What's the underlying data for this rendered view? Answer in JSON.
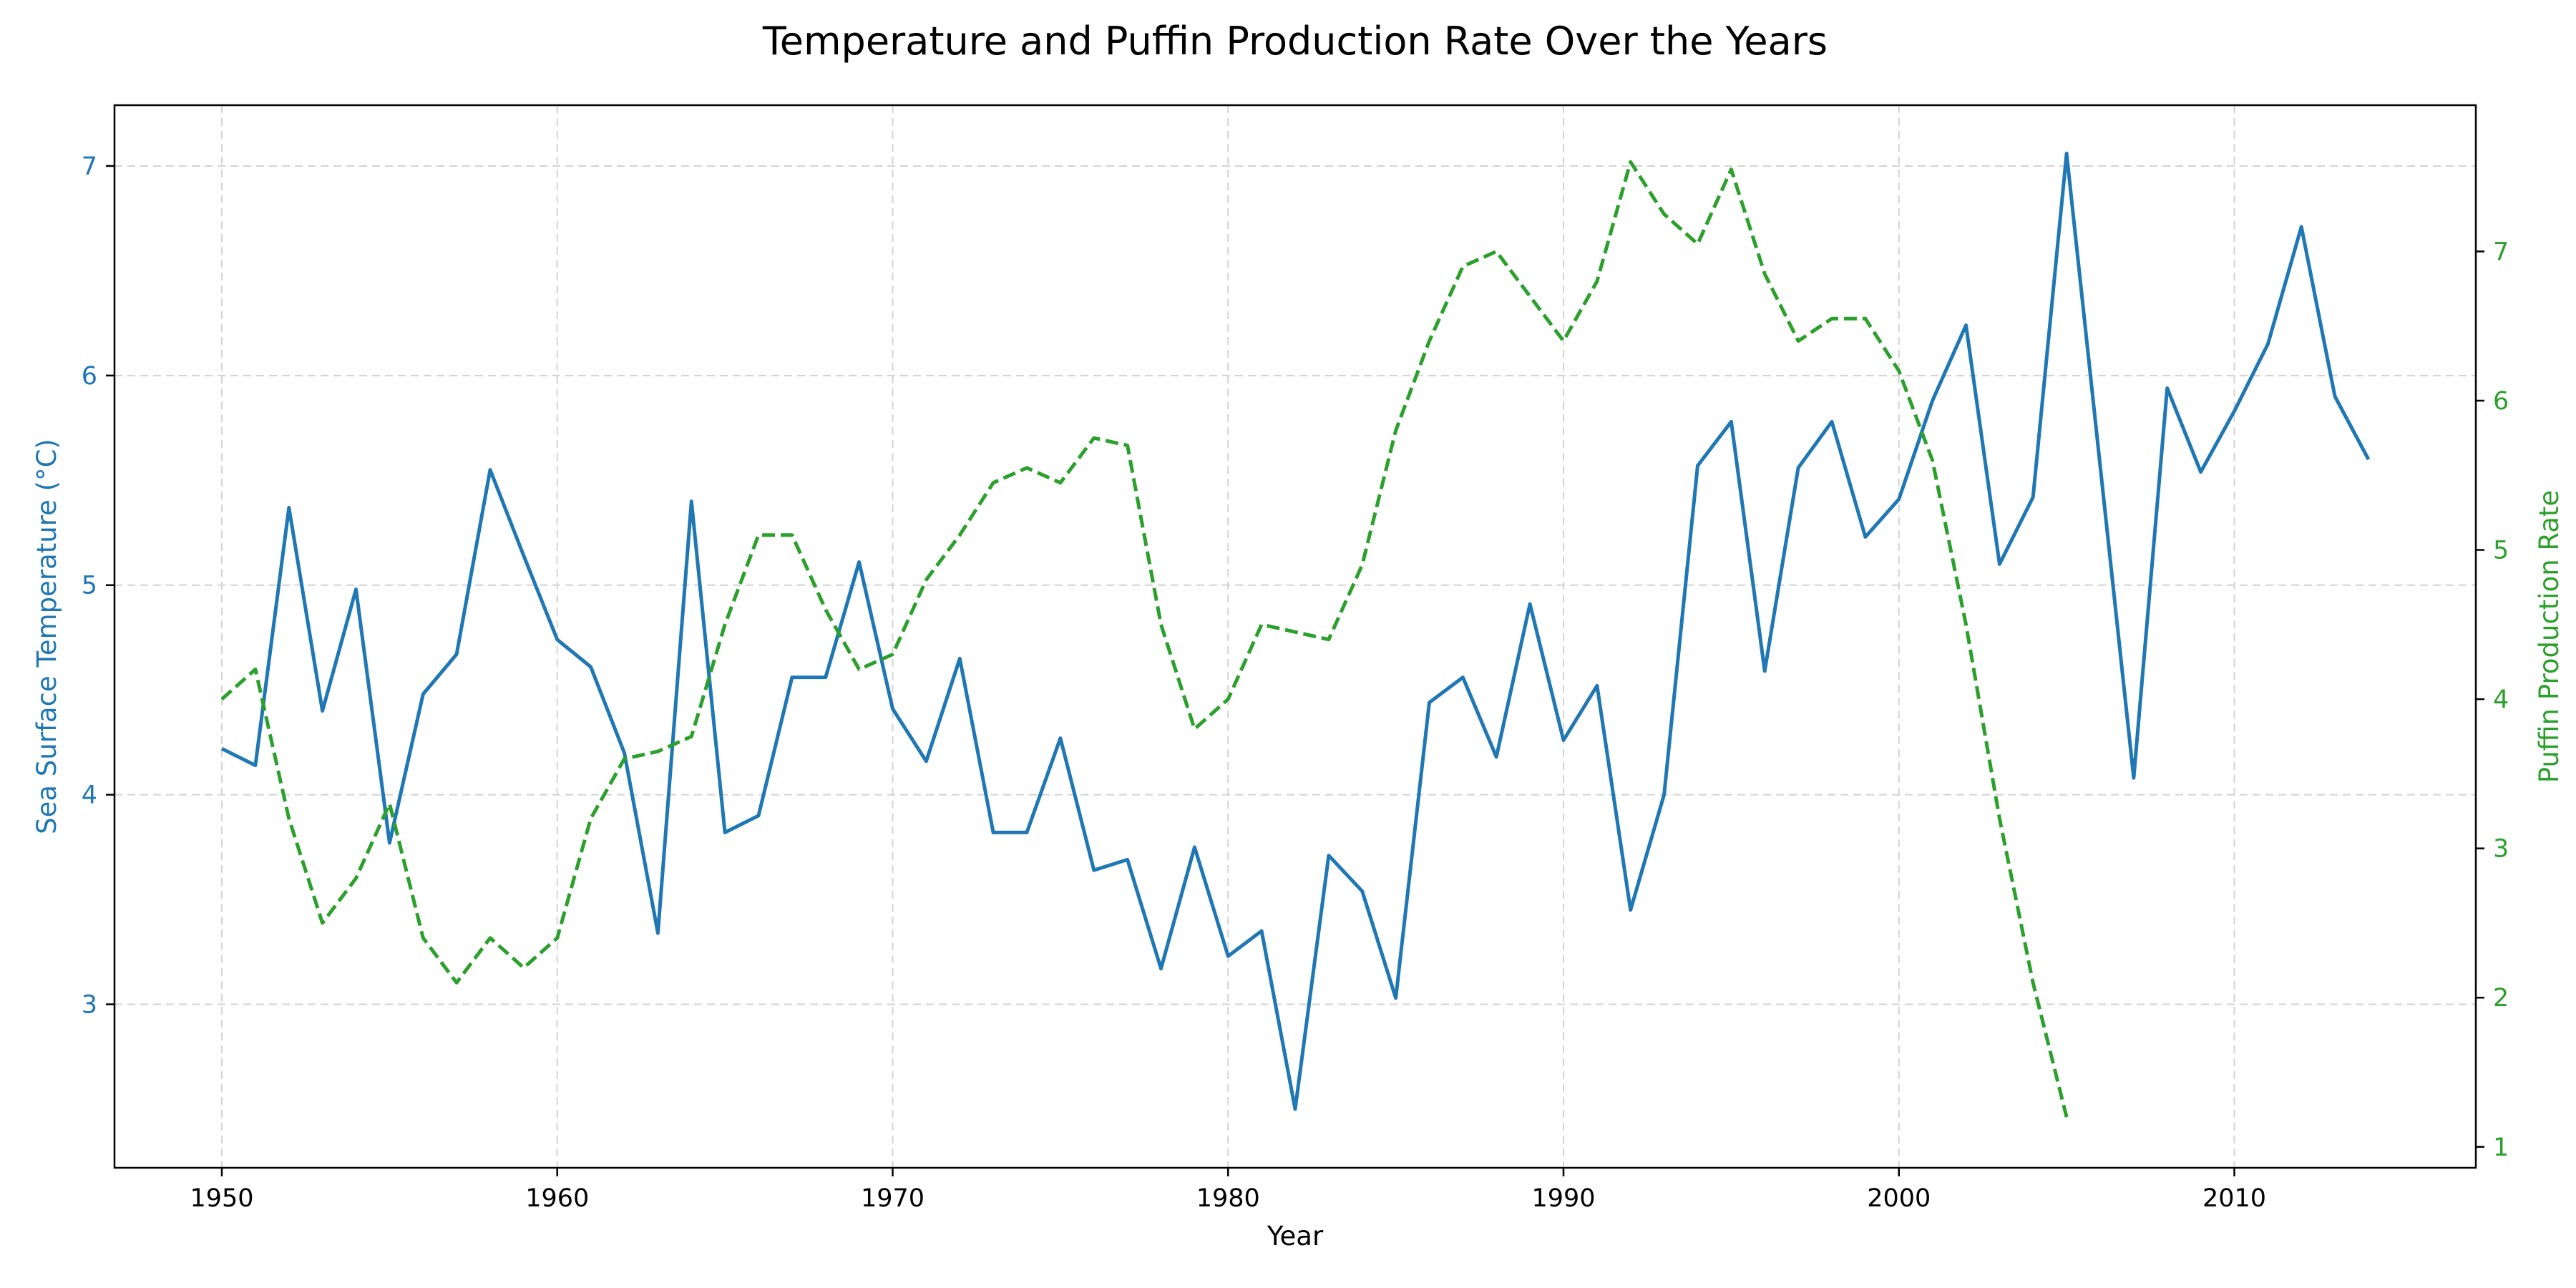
{
  "chart_data": {
    "type": "line",
    "title": "Temperature and Puffin Production Rate Over the Years",
    "xlabel": "Year",
    "xlim": [
      1946.8,
      2017.2
    ],
    "x_ticks": [
      1950,
      1960,
      1970,
      1980,
      1990,
      2000,
      2010
    ],
    "grid": true,
    "colors": {
      "temperature": "#1f77b4",
      "puffin": "#2ca02c"
    },
    "y_left": {
      "label": "Sea Surface Temperature (°C)",
      "lim": [
        2.22,
        7.29
      ],
      "ticks": [
        3,
        4,
        5,
        6,
        7
      ]
    },
    "y_right": {
      "label": "Puffin Production Rate",
      "lim": [
        0.86,
        7.98
      ],
      "ticks": [
        1,
        2,
        3,
        4,
        5,
        6,
        7
      ]
    },
    "series": [
      {
        "axis": "left",
        "style": "solid",
        "color": "#1f77b4",
        "points": [
          [
            1950,
            4.22
          ],
          [
            1951,
            4.14
          ],
          [
            1952,
            5.37
          ],
          [
            1953,
            4.4
          ],
          [
            1954,
            4.98
          ],
          [
            1955,
            3.77
          ],
          [
            1956,
            4.48
          ],
          [
            1957,
            4.67
          ],
          [
            1958,
            5.55
          ],
          [
            1959,
            5.14
          ],
          [
            1960,
            4.74
          ],
          [
            1961,
            4.61
          ],
          [
            1962,
            4.2
          ],
          [
            1963,
            3.34
          ],
          [
            1964,
            5.4
          ],
          [
            1965,
            3.82
          ],
          [
            1966,
            3.9
          ],
          [
            1967,
            4.56
          ],
          [
            1968,
            4.56
          ],
          [
            1969,
            5.11
          ],
          [
            1970,
            4.41
          ],
          [
            1971,
            4.16
          ],
          [
            1972,
            4.65
          ],
          [
            1973,
            3.82
          ],
          [
            1974,
            3.82
          ],
          [
            1975,
            4.27
          ],
          [
            1976,
            3.64
          ],
          [
            1977,
            3.69
          ],
          [
            1978,
            3.17
          ],
          [
            1979,
            3.75
          ],
          [
            1980,
            3.23
          ],
          [
            1981,
            3.35
          ],
          [
            1982,
            2.5
          ],
          [
            1983,
            3.71
          ],
          [
            1984,
            3.54
          ],
          [
            1985,
            3.03
          ],
          [
            1986,
            4.44
          ],
          [
            1987,
            4.56
          ],
          [
            1988,
            4.18
          ],
          [
            1989,
            4.91
          ],
          [
            1990,
            4.26
          ],
          [
            1991,
            4.52
          ],
          [
            1992,
            3.45
          ],
          [
            1993,
            4.0
          ],
          [
            1994,
            5.57
          ],
          [
            1995,
            5.78
          ],
          [
            1996,
            4.59
          ],
          [
            1997,
            5.56
          ],
          [
            1998,
            5.78
          ],
          [
            1999,
            5.23
          ],
          [
            2000,
            5.41
          ],
          [
            2001,
            5.88
          ],
          [
            2002,
            6.24
          ],
          [
            2003,
            5.1
          ],
          [
            2004,
            5.42
          ],
          [
            2005,
            7.06
          ],
          [
            2007,
            4.08
          ],
          [
            2008,
            5.94
          ],
          [
            2009,
            5.54
          ],
          [
            2010,
            5.83
          ],
          [
            2011,
            6.15
          ],
          [
            2012,
            6.71
          ],
          [
            2013,
            5.9
          ],
          [
            2014,
            5.6
          ]
        ]
      },
      {
        "axis": "right",
        "style": "dashed",
        "color": "#2ca02c",
        "points": [
          [
            1950,
            4.0
          ],
          [
            1951,
            4.2
          ],
          [
            1952,
            3.2
          ],
          [
            1953,
            2.5
          ],
          [
            1954,
            2.8
          ],
          [
            1955,
            3.3
          ],
          [
            1956,
            2.4
          ],
          [
            1957,
            2.1
          ],
          [
            1958,
            2.4
          ],
          [
            1959,
            2.2
          ],
          [
            1960,
            2.4
          ],
          [
            1961,
            3.2
          ],
          [
            1962,
            3.6
          ],
          [
            1963,
            3.65
          ],
          [
            1964,
            3.75
          ],
          [
            1965,
            4.5
          ],
          [
            1966,
            5.1
          ],
          [
            1967,
            5.1
          ],
          [
            1968,
            4.6
          ],
          [
            1969,
            4.2
          ],
          [
            1970,
            4.3
          ],
          [
            1971,
            4.8
          ],
          [
            1972,
            5.1
          ],
          [
            1973,
            5.45
          ],
          [
            1974,
            5.55
          ],
          [
            1975,
            5.45
          ],
          [
            1976,
            5.75
          ],
          [
            1977,
            5.7
          ],
          [
            1978,
            4.5
          ],
          [
            1979,
            3.8
          ],
          [
            1980,
            4.0
          ],
          [
            1981,
            4.5
          ],
          [
            1982,
            4.45
          ],
          [
            1983,
            4.4
          ],
          [
            1984,
            4.9
          ],
          [
            1985,
            5.8
          ],
          [
            1986,
            6.4
          ],
          [
            1987,
            6.9
          ],
          [
            1988,
            7.0
          ],
          [
            1989,
            6.7
          ],
          [
            1990,
            6.4
          ],
          [
            1991,
            6.8
          ],
          [
            1992,
            7.6
          ],
          [
            1993,
            7.25
          ],
          [
            1994,
            7.05
          ],
          [
            1995,
            7.55
          ],
          [
            1996,
            6.85
          ],
          [
            1997,
            6.4
          ],
          [
            1998,
            6.55
          ],
          [
            1999,
            6.55
          ],
          [
            2000,
            6.2
          ],
          [
            2001,
            5.6
          ],
          [
            2002,
            4.5
          ],
          [
            2003,
            3.2
          ],
          [
            2004,
            2.1
          ],
          [
            2005,
            1.2
          ]
        ]
      }
    ]
  }
}
